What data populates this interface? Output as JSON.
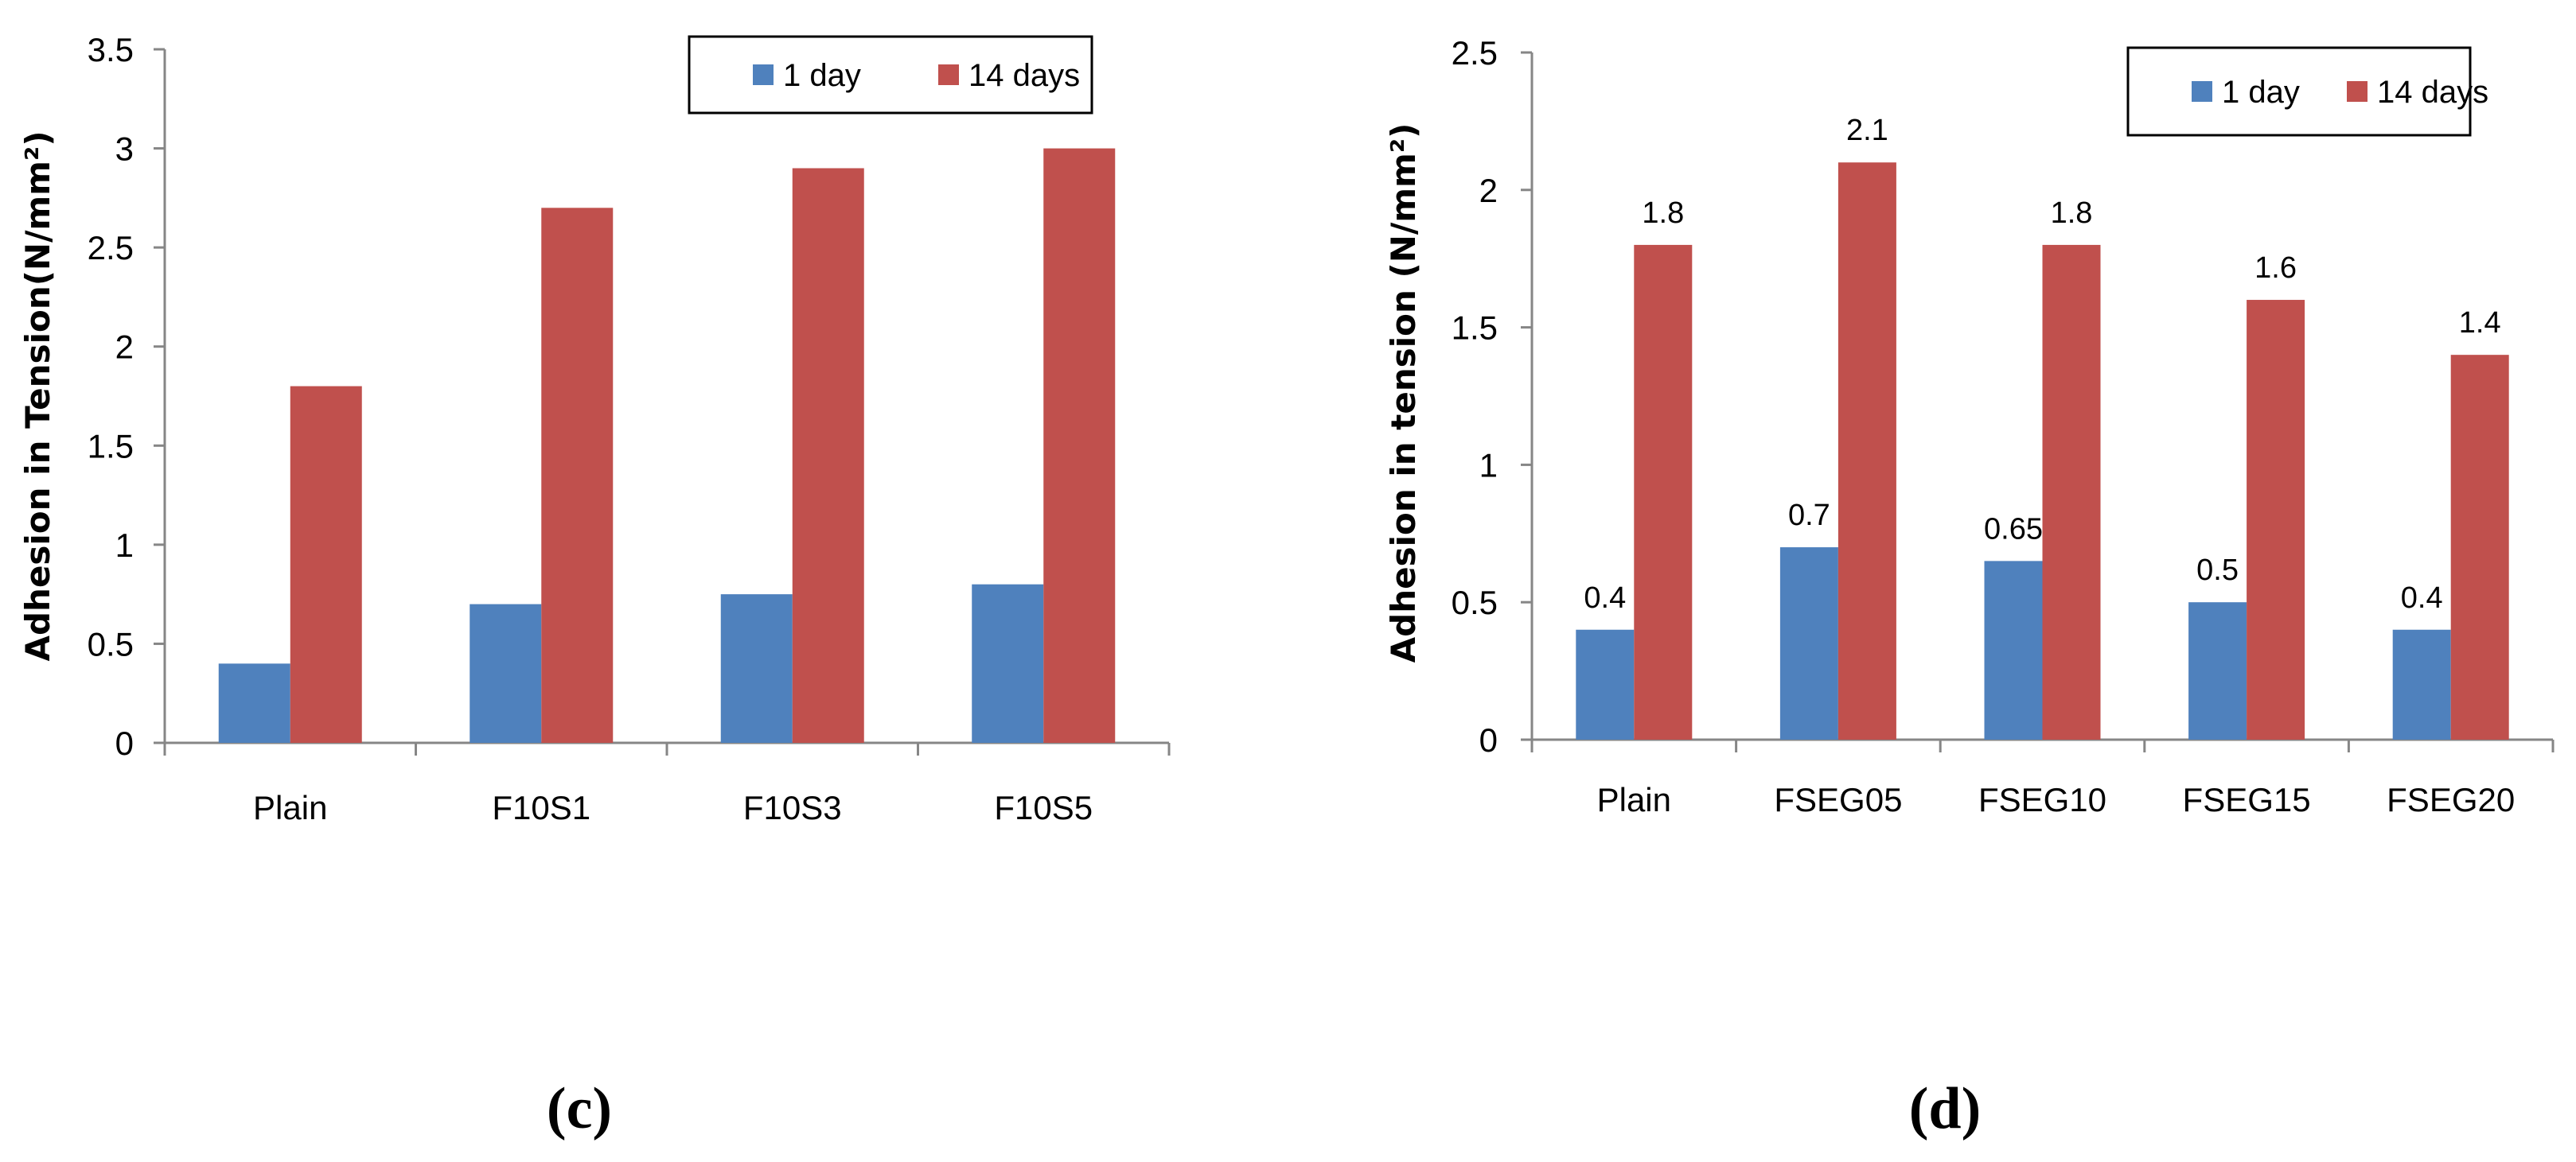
{
  "colors": {
    "day1": "#4F81BD",
    "day14": "#C0504D",
    "axis": "#868686"
  },
  "chart_data": [
    {
      "type": "bar",
      "panel_label": "(c)",
      "title": "",
      "ylabel": "Adhesion  in Tension(N/mm²)",
      "xlabel": "",
      "ylim": [
        0,
        3.5
      ],
      "yticks": [
        "0",
        "0.5",
        "1",
        "1.5",
        "2",
        "2.5",
        "3",
        "3.5"
      ],
      "ytick_values": [
        0,
        0.5,
        1,
        1.5,
        2,
        2.5,
        3,
        3.5
      ],
      "categories": [
        "Plain",
        "F10S1",
        "F10S3",
        "F10S5"
      ],
      "legend_position": "top-right",
      "series": [
        {
          "name": "1 day",
          "values": [
            0.4,
            0.7,
            0.75,
            0.8
          ],
          "data_labels": null
        },
        {
          "name": "14 days",
          "values": [
            1.8,
            2.7,
            2.9,
            3.0
          ],
          "data_labels": null
        }
      ]
    },
    {
      "type": "bar",
      "panel_label": "(d)",
      "title": "",
      "ylabel": "Adhesion in tension (N/mm²)",
      "xlabel": "",
      "ylim": [
        0,
        2.5
      ],
      "yticks": [
        "0",
        "0.5",
        "1",
        "1.5",
        "2",
        "2.5"
      ],
      "ytick_values": [
        0,
        0.5,
        1,
        1.5,
        2,
        2.5
      ],
      "categories": [
        "Plain",
        "FSEG05",
        "FSEG10",
        "FSEG15",
        "FSEG20"
      ],
      "legend_position": "top-right",
      "series": [
        {
          "name": "1 day",
          "values": [
            0.4,
            0.7,
            0.65,
            0.5,
            0.4
          ],
          "data_labels": [
            "0.4",
            "0.7",
            "0.65",
            "0.5",
            "0.4"
          ]
        },
        {
          "name": "14 days",
          "values": [
            1.8,
            2.1,
            1.8,
            1.6,
            1.4
          ],
          "data_labels": [
            "1.8",
            "2.1",
            "1.8",
            "1.6",
            "1.4"
          ]
        }
      ]
    }
  ]
}
